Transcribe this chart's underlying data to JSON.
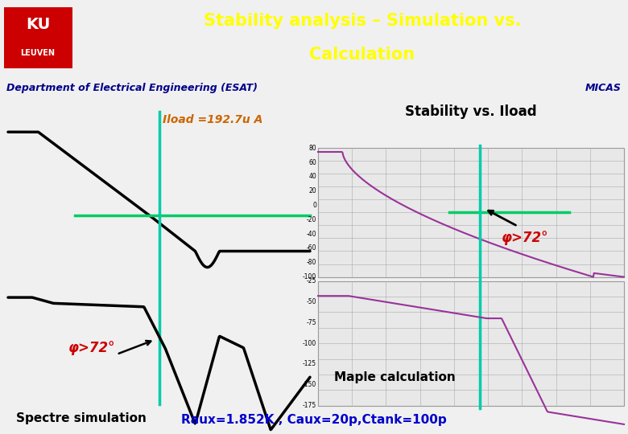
{
  "title_line1": "Stability analysis – Simulation vs.",
  "title_line2": "Calculation",
  "title_bg": "#1515b0",
  "title_color": "#ffff00",
  "dept_text": "Department of Electrical Engineering (ESAT)",
  "dept_bg": "#ffff00",
  "dept_color": "#00008b",
  "micas_text": "MICAS",
  "subtitle": "Stability vs. Iload",
  "subtitle_color": "#000000",
  "iload_label": "Iload =192.7u A",
  "iload_color": "#cc6600",
  "phi_label": "φ>72°",
  "phi_color": "#cc0000",
  "spectre_label": "Spectre simulation",
  "maple_label": "Maple calculation",
  "bottom_text": "Raux=1.852K , Caux=20p,Ctank=100p",
  "bottom_color": "#0000cc",
  "bg_color": "#f0f0f0",
  "blue_bg": "#1515b0",
  "green_line_color": "#00cc66",
  "cyan_line_color": "#00ccaa",
  "ku_box_color": "#cc0000",
  "plot_bg": "#e8e8e8",
  "grid_color": "#aaaaaa"
}
